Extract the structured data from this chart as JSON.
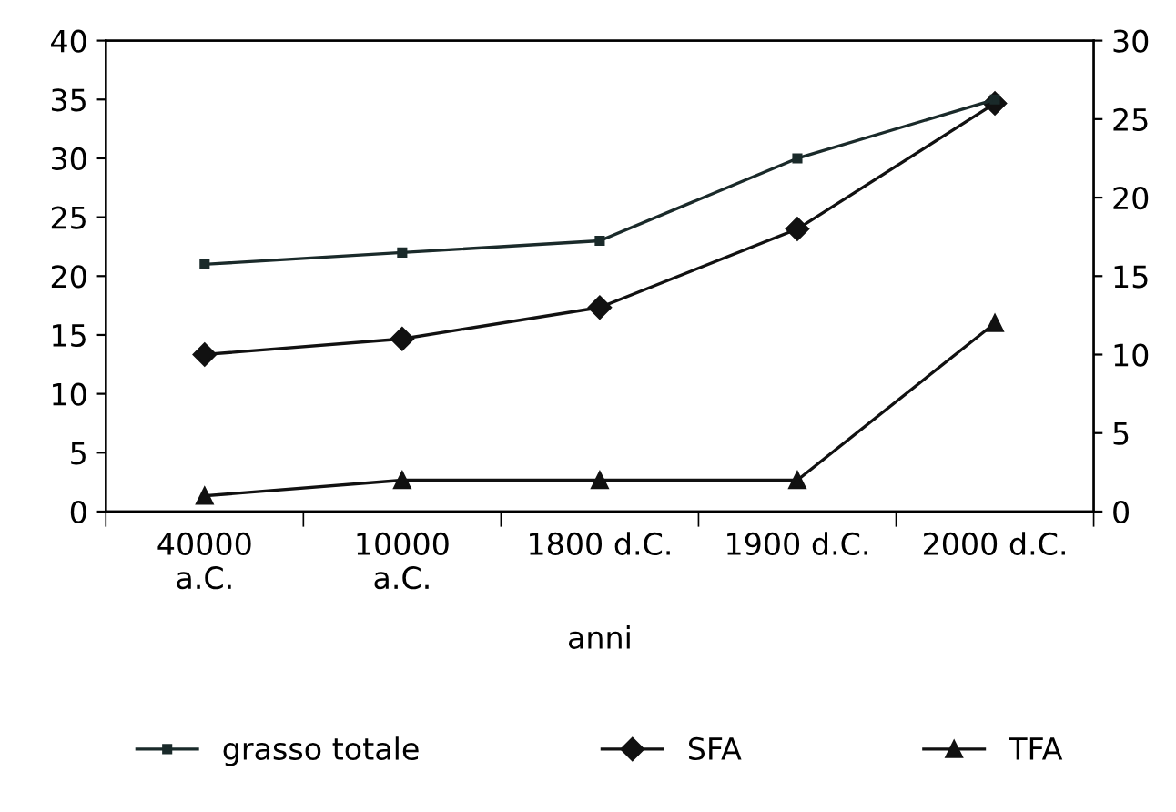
{
  "chart_data": {
    "type": "line",
    "xlabel": "anni",
    "categories": [
      "40000\na.C.",
      "10000\na.C.",
      "1800 d.C.",
      "1900 d.C.",
      "2000 d.C."
    ],
    "series": [
      {
        "name": "grasso totale",
        "color": "#1a2a2a",
        "marker": "square",
        "values": [
          21,
          22,
          23,
          30,
          35
        ]
      },
      {
        "name": "SFA",
        "color": "#111111",
        "marker": "diamond",
        "axis": "y2",
        "values": [
          10,
          11,
          13,
          18,
          26
        ]
      },
      {
        "name": "TFA",
        "color": "#111111",
        "marker": "triangle",
        "axis": "y2",
        "values": [
          1,
          2,
          2,
          2,
          12
        ]
      }
    ],
    "ylim": [
      0,
      40
    ],
    "yticks": [
      0,
      5,
      10,
      15,
      20,
      25,
      30,
      35,
      40
    ],
    "y2lim": [
      0,
      30
    ],
    "y2ticks": [
      0,
      5,
      10,
      15,
      20,
      25,
      30
    ],
    "grid": false,
    "legend": "bottom",
    "line_style": "solid"
  }
}
